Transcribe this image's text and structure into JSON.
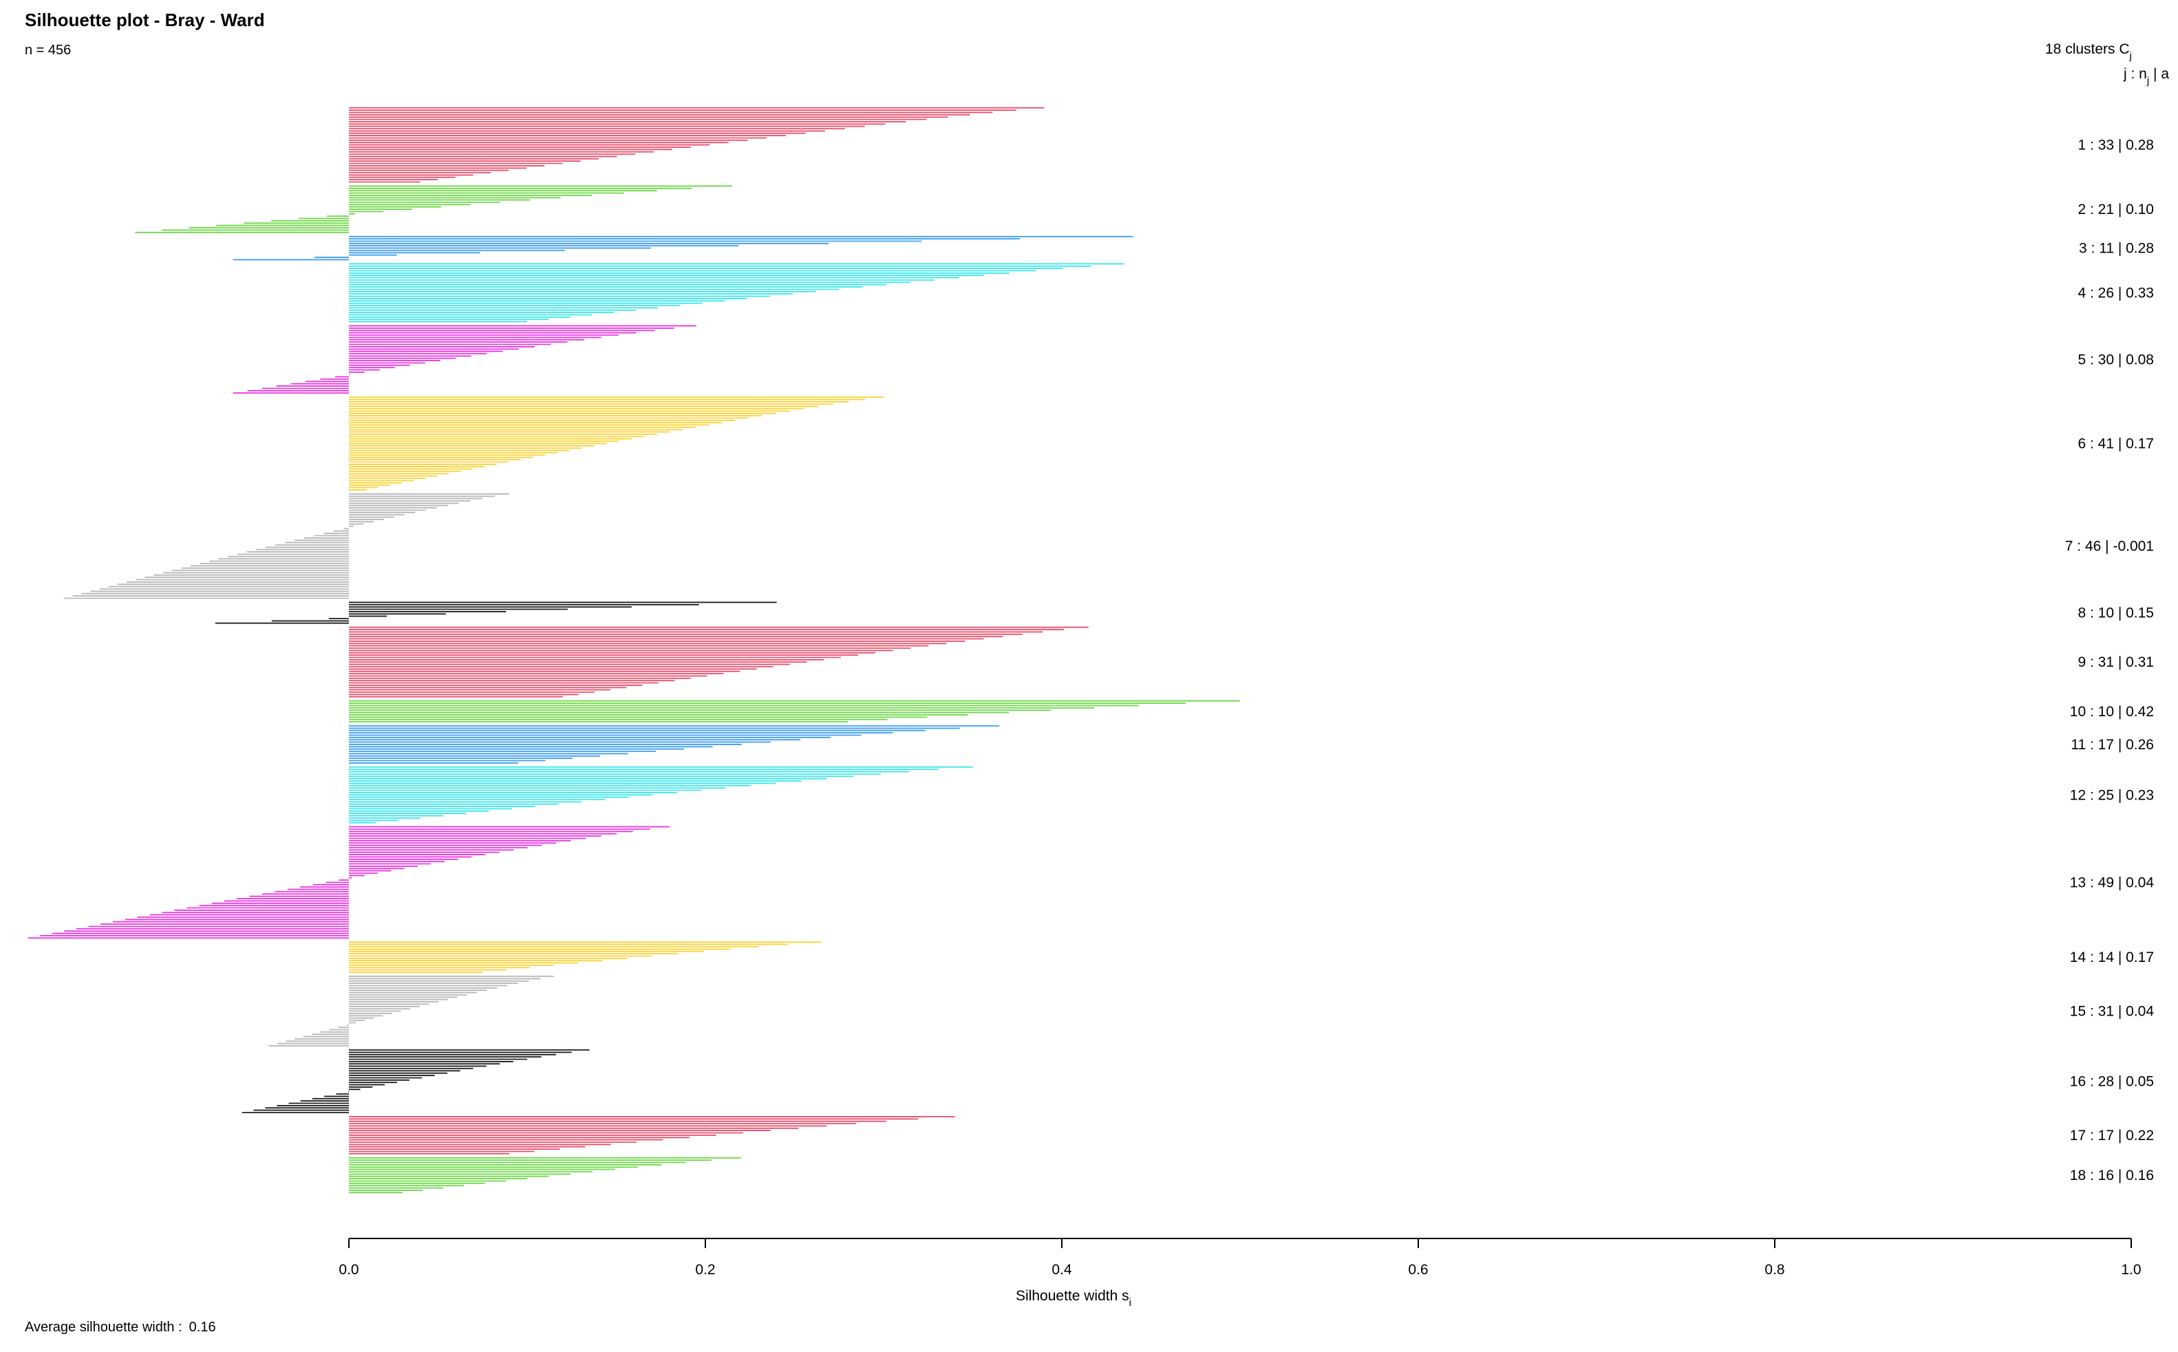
{
  "header": {
    "title": "Silhouette plot - Bray - Ward",
    "n_label": "n = 456"
  },
  "footer": {
    "avg_label": "Average silhouette width :",
    "avg_value": "0.16"
  },
  "legend": {
    "header_line1": "18  clusters  C",
    "header_line1_sub": "j",
    "header_line2": "j :  n",
    "header_line2_sub": "j",
    "header_line2_tail": " | a"
  },
  "chart_data": {
    "type": "bar",
    "orientation": "horizontal",
    "title": "Silhouette plot - Bray - Ward",
    "xlabel": "Silhouette width s",
    "xlabel_sub": "i",
    "xlim": [
      0.0,
      1.0
    ],
    "xticks": [
      0.0,
      0.2,
      0.4,
      0.6,
      0.8,
      1.0
    ],
    "xtick_labels": [
      "0.0",
      "0.2",
      "0.4",
      "0.6",
      "0.8",
      "1.0"
    ],
    "n": 456,
    "average_width": 0.16,
    "palette": [
      "#e8506e",
      "#6fd84a",
      "#3f9ef0",
      "#3ee6ea",
      "#e53ae0",
      "#fcd33a",
      "#b8b8b8",
      "#202020"
    ],
    "clusters": [
      {
        "id": 1,
        "size": 33,
        "avg": 0.28,
        "label": "1 :  33  |  0.28",
        "color": "#e8506e",
        "max": 0.39,
        "min": 0.04
      },
      {
        "id": 2,
        "size": 21,
        "avg": 0.1,
        "label": "2 :  21  |  0.10",
        "color": "#6fd84a",
        "max": 0.215,
        "min": -0.12
      },
      {
        "id": 3,
        "size": 11,
        "avg": 0.28,
        "label": "3 :  11  |  0.28",
        "color": "#3f9ef0",
        "max": 0.44,
        "min": -0.065
      },
      {
        "id": 4,
        "size": 26,
        "avg": 0.33,
        "label": "4 :  26  |  0.33",
        "color": "#3ee6ea",
        "max": 0.435,
        "min": 0.1
      },
      {
        "id": 5,
        "size": 30,
        "avg": 0.08,
        "label": "5 :  30  |  0.08",
        "color": "#e53ae0",
        "max": 0.195,
        "min": -0.065
      },
      {
        "id": 6,
        "size": 41,
        "avg": 0.17,
        "label": "6 :  41  |  0.17",
        "color": "#fcd33a",
        "max": 0.3,
        "min": 0.01
      },
      {
        "id": 7,
        "size": 46,
        "avg": -0.001,
        "label": "7 :  46  |  -0.001",
        "color": "#b8b8b8",
        "max": 0.09,
        "min": -0.16
      },
      {
        "id": 8,
        "size": 10,
        "avg": 0.15,
        "label": "8 :  10  |  0.15",
        "color": "#202020",
        "max": 0.24,
        "min": -0.075
      },
      {
        "id": 9,
        "size": 31,
        "avg": 0.31,
        "label": "9 :  31  |  0.31",
        "color": "#e8506e",
        "max": 0.415,
        "min": 0.12
      },
      {
        "id": 10,
        "size": 10,
        "avg": 0.42,
        "label": "10 :  10  |  0.42",
        "color": "#6fd84a",
        "max": 0.5,
        "min": 0.28
      },
      {
        "id": 11,
        "size": 17,
        "avg": 0.26,
        "label": "11 :  17  |  0.26",
        "color": "#3f9ef0",
        "max": 0.365,
        "min": 0.095
      },
      {
        "id": 12,
        "size": 25,
        "avg": 0.23,
        "label": "12 :  25  |  0.23",
        "color": "#3ee6ea",
        "max": 0.35,
        "min": 0.015
      },
      {
        "id": 13,
        "size": 49,
        "avg": 0.04,
        "label": "13 :  49  |  0.04",
        "color": "#e53ae0",
        "max": 0.18,
        "min": -0.18
      },
      {
        "id": 14,
        "size": 14,
        "avg": 0.17,
        "label": "14 :  14  |  0.17",
        "color": "#fcd33a",
        "max": 0.265,
        "min": 0.075
      },
      {
        "id": 15,
        "size": 31,
        "avg": 0.04,
        "label": "15 :  31  |  0.04",
        "color": "#b8b8b8",
        "max": 0.115,
        "min": -0.045
      },
      {
        "id": 16,
        "size": 28,
        "avg": 0.05,
        "label": "16 :  28  |  0.05",
        "color": "#202020",
        "max": 0.135,
        "min": -0.06
      },
      {
        "id": 17,
        "size": 17,
        "avg": 0.22,
        "label": "17 :  17  |  0.22",
        "color": "#e8506e",
        "max": 0.34,
        "min": 0.09
      },
      {
        "id": 18,
        "size": 16,
        "avg": 0.16,
        "label": "18 :  16  |  0.16",
        "color": "#6fd84a",
        "max": 0.22,
        "min": 0.03
      }
    ]
  }
}
